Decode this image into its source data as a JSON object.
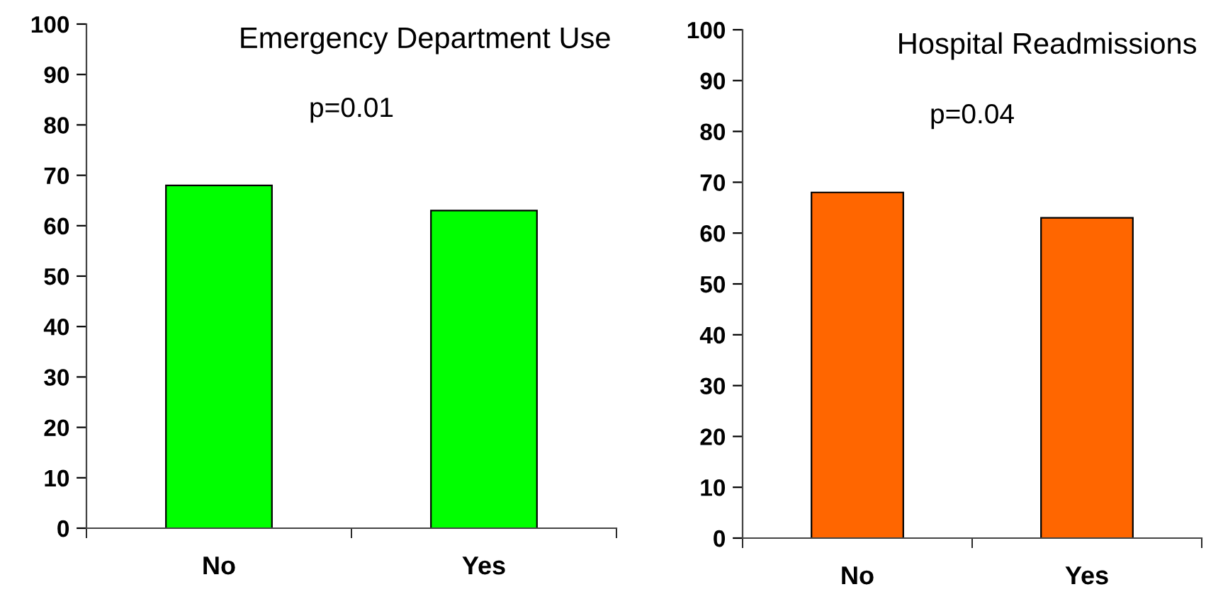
{
  "chart_data": [
    {
      "type": "bar",
      "title": "Emergency Department Use",
      "categories": [
        "No",
        "Yes"
      ],
      "values": [
        68,
        63
      ],
      "color": "#00ff00",
      "ylim": [
        0,
        100
      ],
      "yticks": [
        0,
        10,
        20,
        30,
        40,
        50,
        60,
        70,
        80,
        90,
        100
      ],
      "annotations": [
        "p=0.01"
      ],
      "grid": false,
      "legend": false
    },
    {
      "type": "bar",
      "title": "Hospital Readmissions",
      "categories": [
        "No",
        "Yes"
      ],
      "values": [
        68,
        63
      ],
      "color": "#ff6600",
      "ylim": [
        0,
        100
      ],
      "yticks": [
        0,
        10,
        20,
        30,
        40,
        50,
        60,
        70,
        80,
        90,
        100
      ],
      "annotations": [
        "p=0.04"
      ],
      "grid": false,
      "legend": false
    }
  ]
}
